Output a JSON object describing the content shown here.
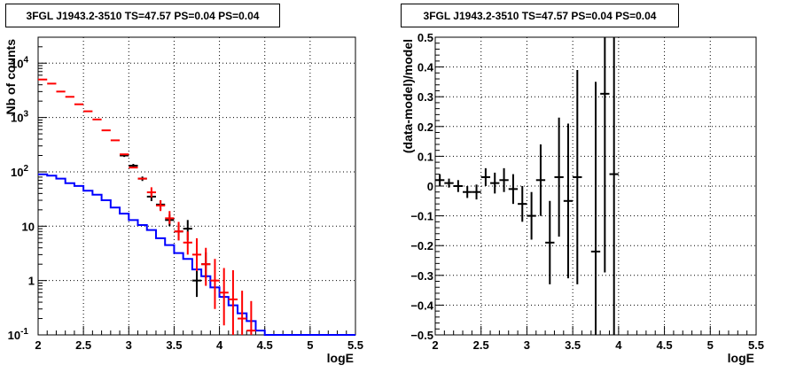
{
  "panels": {
    "left": {
      "title": "3FGL J1943.2-3510 TS=47.57 PS=0.04 PS=0.04"
    },
    "right": {
      "title": "3FGL J1943.2-3510 TS=47.57 PS=0.04 PS=0.04"
    }
  },
  "chart_data": [
    {
      "type": "line",
      "title": "3FGL J1943.2-3510 TS=47.57 PS=0.04 PS=0.04",
      "xlabel": "logE",
      "ylabel": "Nb of counts",
      "xlim": [
        2,
        5.5
      ],
      "ylim": [
        0.1,
        30000
      ],
      "yscale": "log",
      "grid": true,
      "xticks": [
        "2",
        "2.5",
        "3",
        "3.5",
        "4",
        "4.5",
        "5",
        "5.5"
      ],
      "yticks": [
        {
          "value": 0.1,
          "label": "10",
          "exp": "-1"
        },
        {
          "value": 1,
          "label": "1",
          "exp": ""
        },
        {
          "value": 10,
          "label": "10",
          "exp": ""
        },
        {
          "value": 100,
          "label": "10",
          "exp": "2"
        },
        {
          "value": 1000,
          "label": "10",
          "exp": "3"
        },
        {
          "value": 10000,
          "label": "10",
          "exp": "4"
        }
      ],
      "series": [
        {
          "color": "#0000ff",
          "style": "step",
          "edges": [
            2.0,
            2.1,
            2.2,
            2.3,
            2.4,
            2.5,
            2.6,
            2.7,
            2.8,
            2.9,
            3.0,
            3.1,
            3.2,
            3.3,
            3.4,
            3.5,
            3.6,
            3.7,
            3.8,
            3.9,
            4.0,
            4.1,
            4.2,
            4.3,
            4.4,
            4.5,
            5.5
          ],
          "values": [
            90,
            85,
            75,
            62,
            55,
            45,
            38,
            30,
            22,
            17,
            13,
            10.5,
            8.5,
            6,
            4.5,
            3.2,
            2.5,
            1.6,
            1.2,
            0.75,
            0.5,
            0.35,
            0.25,
            0.18,
            0.12,
            0.1
          ]
        },
        {
          "color": "#ff0000",
          "style": "errorbar",
          "x": [
            2.05,
            2.15,
            2.25,
            2.35,
            2.45,
            2.55,
            2.65,
            2.75,
            2.85,
            2.95,
            3.05,
            3.15,
            3.25,
            3.35,
            3.45,
            3.55,
            3.65,
            3.75,
            3.85,
            3.95,
            4.05,
            4.15,
            4.25,
            4.35
          ],
          "y": [
            5000,
            4200,
            3000,
            2400,
            1750,
            1300,
            920,
            580,
            380,
            210,
            120,
            75,
            42,
            24,
            14,
            8,
            5,
            3,
            2,
            1,
            0.6,
            0.45,
            0.2,
            0.12
          ],
          "yerr_lo": [
            0,
            0,
            0,
            0,
            0,
            0,
            0,
            0,
            0,
            0,
            0,
            0,
            8,
            5,
            3,
            2.5,
            2,
            1.5,
            1.2,
            0.7,
            0.45,
            0.35,
            0.16,
            0.1
          ],
          "yerr_hi": [
            0,
            0,
            0,
            0,
            0,
            0,
            0,
            0,
            0,
            0,
            0,
            0,
            10,
            6,
            5,
            4,
            3,
            3,
            2,
            1.5,
            1.1,
            1.1,
            0.45,
            0.3
          ]
        },
        {
          "color": "#000000",
          "style": "errorbar",
          "x": [
            2.95,
            3.05,
            3.15,
            3.25,
            3.35,
            3.45,
            3.55,
            3.65,
            3.75,
            3.85
          ],
          "y": [
            200,
            130,
            75,
            35,
            25,
            13,
            8,
            9,
            1,
            2
          ],
          "yerr_lo": [
            12,
            10,
            7,
            6,
            5,
            3,
            2.5,
            3.5,
            0.5,
            0.9
          ],
          "yerr_hi": [
            12,
            10,
            7,
            6,
            5,
            3.5,
            3,
            4,
            0.8,
            1.3
          ]
        }
      ]
    },
    {
      "type": "scatter",
      "title": "3FGL J1943.2-3510 TS=47.57 PS=0.04 PS=0.04",
      "xlabel": "logE",
      "ylabel": "(data-model)/model",
      "xlim": [
        2,
        5.5
      ],
      "ylim": [
        -0.5,
        0.5
      ],
      "grid": true,
      "xticks": [
        "2",
        "2.5",
        "3",
        "3.5",
        "4",
        "4.5",
        "5",
        "5.5"
      ],
      "yticks": [
        "−0.5",
        "−0.4",
        "−0.3",
        "−0.2",
        "−0.1",
        "0",
        "0.1",
        "0.2",
        "0.3",
        "0.4",
        "0.5"
      ],
      "series": [
        {
          "color": "#000000",
          "style": "errorbar",
          "x": [
            2.05,
            2.15,
            2.25,
            2.35,
            2.45,
            2.55,
            2.65,
            2.75,
            2.85,
            2.95,
            3.05,
            3.15,
            3.25,
            3.35,
            3.45,
            3.55,
            3.75,
            3.85,
            3.95
          ],
          "y": [
            0.02,
            0.01,
            0.0,
            -0.02,
            -0.02,
            0.03,
            0.01,
            0.02,
            -0.01,
            -0.06,
            -0.1,
            0.02,
            -0.19,
            0.03,
            -0.05,
            0.03,
            -0.22,
            0.31,
            0.04
          ],
          "yerr": [
            0.02,
            0.015,
            0.02,
            0.02,
            0.025,
            0.03,
            0.035,
            0.04,
            0.05,
            0.06,
            0.08,
            0.12,
            0.14,
            0.2,
            0.26,
            0.36,
            0.57,
            0.6,
            0.7
          ]
        }
      ]
    }
  ]
}
